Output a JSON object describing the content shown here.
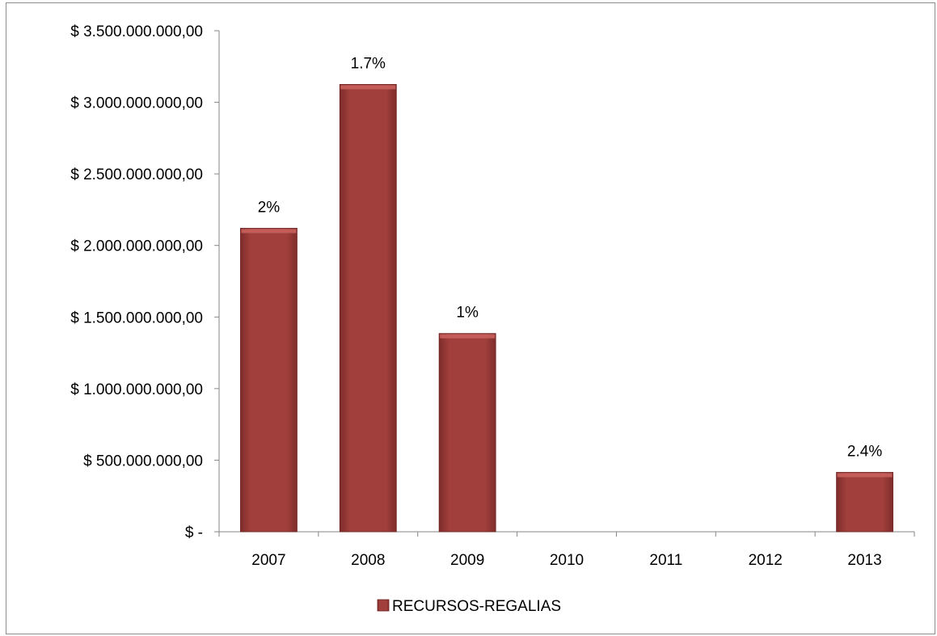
{
  "chart_data": {
    "type": "bar",
    "categories": [
      "2007",
      "2008",
      "2009",
      "2010",
      "2011",
      "2012",
      "2013"
    ],
    "series": [
      {
        "name": "RECURSOS-REGALIAS",
        "values": [
          2120000000,
          3125000000,
          1385000000,
          0,
          0,
          0,
          415000000
        ],
        "data_labels": [
          "2%",
          "1.7%",
          "1%",
          "",
          "",
          "",
          "2.4%"
        ]
      }
    ],
    "y_ticks": [
      {
        "value": 0,
        "label": "$ -"
      },
      {
        "value": 500000000,
        "label": "$ 500.000.000,00"
      },
      {
        "value": 1000000000,
        "label": "$ 1.000.000.000,00"
      },
      {
        "value": 1500000000,
        "label": "$ 1.500.000.000,00"
      },
      {
        "value": 2000000000,
        "label": "$ 2.000.000.000,00"
      },
      {
        "value": 2500000000,
        "label": "$ 2.500.000.000,00"
      },
      {
        "value": 3000000000,
        "label": "$ 3.000.000.000,00"
      },
      {
        "value": 3500000000,
        "label": "$ 3.500.000.000,00"
      }
    ],
    "ylim": [
      0,
      3500000000
    ],
    "grid": false,
    "legend_position": "bottom",
    "colors": {
      "bar": "#9b3a38",
      "bar_top": "#c8605c",
      "bar_edge": "#6e2423",
      "axis": "#868686",
      "text": "#000000"
    }
  }
}
